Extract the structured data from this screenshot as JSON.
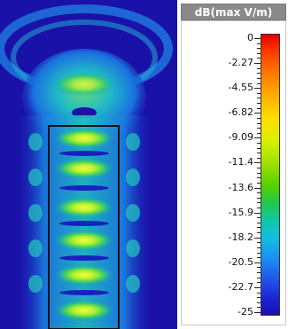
{
  "colorbar": {
    "title": "dB(max V/m)",
    "labels": [
      "0",
      "-2.27",
      "-4.55",
      "-6.82",
      "-9.09",
      "-11.4",
      "-13.6",
      "-15.9",
      "-18.2",
      "-20.5",
      "-22.7",
      "-25"
    ],
    "max": 0,
    "min": -25
  },
  "colors": {
    "background_field": "#1a12a8",
    "outline": "#111111"
  }
}
